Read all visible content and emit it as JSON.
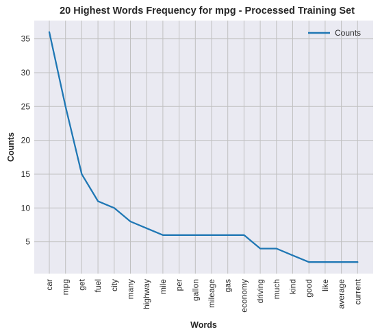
{
  "chart_data": {
    "type": "line",
    "title": "20 Highest Words Frequency for mpg - Processed Training Set",
    "xlabel": "Words",
    "ylabel": "Counts",
    "categories": [
      "car",
      "mpg",
      "get",
      "fuel",
      "city",
      "many",
      "highway",
      "mile",
      "per",
      "gallon",
      "mileage",
      "gas",
      "economy",
      "driving",
      "much",
      "kind",
      "good",
      "like",
      "average",
      "current"
    ],
    "series": [
      {
        "name": "Counts",
        "values": [
          36,
          25,
          15,
          11,
          10,
          8,
          7,
          6,
          6,
          6,
          6,
          6,
          6,
          4,
          4,
          3,
          2,
          2,
          2,
          2
        ]
      }
    ],
    "yticks": [
      5,
      10,
      15,
      20,
      25,
      30,
      35
    ],
    "ylim": [
      0.3,
      37.7
    ],
    "grid": true,
    "legend": "top-right",
    "colors": {
      "line": "#1f77b4",
      "plot_bg": "#eaeaf2",
      "grid": "#c0c0c0"
    }
  }
}
